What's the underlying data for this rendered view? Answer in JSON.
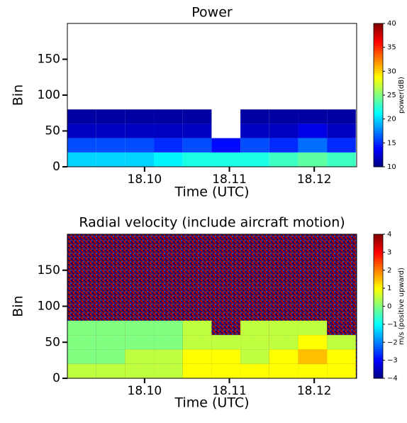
{
  "chart_data": [
    {
      "type": "heatmap",
      "title": "Power",
      "xlabel": "Time (UTC)",
      "ylabel": "Bin",
      "colormap": "jet",
      "x": [
        18.0926,
        18.096,
        18.0994,
        18.1028,
        18.1062,
        18.1096,
        18.113,
        18.1164,
        18.1198,
        18.1232
      ],
      "y": [
        10,
        30,
        50,
        70,
        90,
        110,
        130,
        150,
        170,
        190
      ],
      "z": [
        [
          20,
          20,
          20,
          21,
          22,
          22,
          22,
          23,
          24,
          23
        ],
        [
          16,
          16,
          16,
          15,
          16,
          14,
          16,
          15,
          17,
          15
        ],
        [
          12,
          12,
          12,
          12,
          12,
          null,
          12,
          12,
          13,
          12
        ],
        [
          11,
          11,
          11,
          11,
          11,
          null,
          11,
          11,
          11,
          11
        ],
        [
          null,
          null,
          null,
          null,
          null,
          null,
          null,
          null,
          null,
          null
        ],
        [
          null,
          null,
          null,
          null,
          null,
          null,
          null,
          null,
          null,
          null
        ],
        [
          null,
          null,
          null,
          null,
          null,
          null,
          null,
          null,
          null,
          null
        ],
        [
          null,
          null,
          null,
          null,
          null,
          null,
          null,
          null,
          null,
          null
        ],
        [
          null,
          null,
          null,
          null,
          null,
          null,
          null,
          null,
          null,
          null
        ],
        [
          null,
          null,
          null,
          null,
          null,
          null,
          null,
          null,
          null,
          null
        ]
      ],
      "xlim": [
        18.0909,
        18.125
      ],
      "ylim": [
        0,
        200
      ],
      "xticks": [
        {
          "value": 18.1,
          "label": "18.10"
        },
        {
          "value": 18.11,
          "label": "18.11"
        },
        {
          "value": 18.12,
          "label": "18.12"
        }
      ],
      "yticks": [
        0,
        50,
        100,
        150
      ],
      "colorbar": {
        "label": "power(dB)",
        "lim": [
          10,
          40
        ],
        "ticks": [
          10,
          15,
          20,
          25,
          30,
          35,
          40
        ]
      }
    },
    {
      "type": "heatmap",
      "title": "Radial velocity (include aircraft motion)",
      "xlabel": "Time (UTC)",
      "ylabel": "Bin",
      "colormap": "jet",
      "x": [
        18.0926,
        18.096,
        18.0994,
        18.1028,
        18.1062,
        18.1096,
        18.113,
        18.1164,
        18.1198,
        18.1232
      ],
      "y": [
        10,
        30,
        50,
        70,
        90,
        110,
        130,
        150,
        170,
        190
      ],
      "z": [
        [
          0.5,
          0.5,
          0.5,
          0.5,
          1,
          1,
          1,
          1,
          1,
          1
        ],
        [
          0,
          0,
          0.5,
          0.5,
          1,
          1,
          0.5,
          1,
          1.5,
          1
        ],
        [
          0,
          0,
          0,
          0,
          0.5,
          0.5,
          0.5,
          0.5,
          1,
          0.5
        ],
        [
          0,
          0,
          0,
          0,
          0.5,
          null,
          0.5,
          0.5,
          0.5,
          null
        ],
        [
          null,
          null,
          null,
          null,
          null,
          null,
          null,
          null,
          null,
          null
        ],
        [
          null,
          null,
          null,
          null,
          null,
          null,
          null,
          null,
          null,
          null
        ],
        [
          null,
          null,
          null,
          null,
          null,
          null,
          null,
          null,
          null,
          null
        ],
        [
          null,
          null,
          null,
          null,
          null,
          null,
          null,
          null,
          null,
          null
        ],
        [
          null,
          null,
          null,
          null,
          null,
          null,
          null,
          null,
          null,
          null
        ],
        [
          null,
          null,
          null,
          null,
          null,
          null,
          null,
          null,
          null,
          null
        ]
      ],
      "xlim": [
        18.0909,
        18.125
      ],
      "ylim": [
        0,
        200
      ],
      "xticks": [
        {
          "value": 18.1,
          "label": "18.10"
        },
        {
          "value": 18.11,
          "label": "18.11"
        },
        {
          "value": 18.12,
          "label": "18.12"
        }
      ],
      "yticks": [
        0,
        50,
        100,
        150
      ],
      "colorbar": {
        "label": "m/s (positive upward)",
        "lim": [
          -4,
          4
        ],
        "ticks": [
          {
            "value": -4,
            "label": "−4"
          },
          {
            "value": -3,
            "label": "−3"
          },
          {
            "value": -2,
            "label": "−2"
          },
          {
            "value": -1,
            "label": "−1"
          },
          0,
          1,
          2,
          3,
          4
        ]
      }
    }
  ]
}
